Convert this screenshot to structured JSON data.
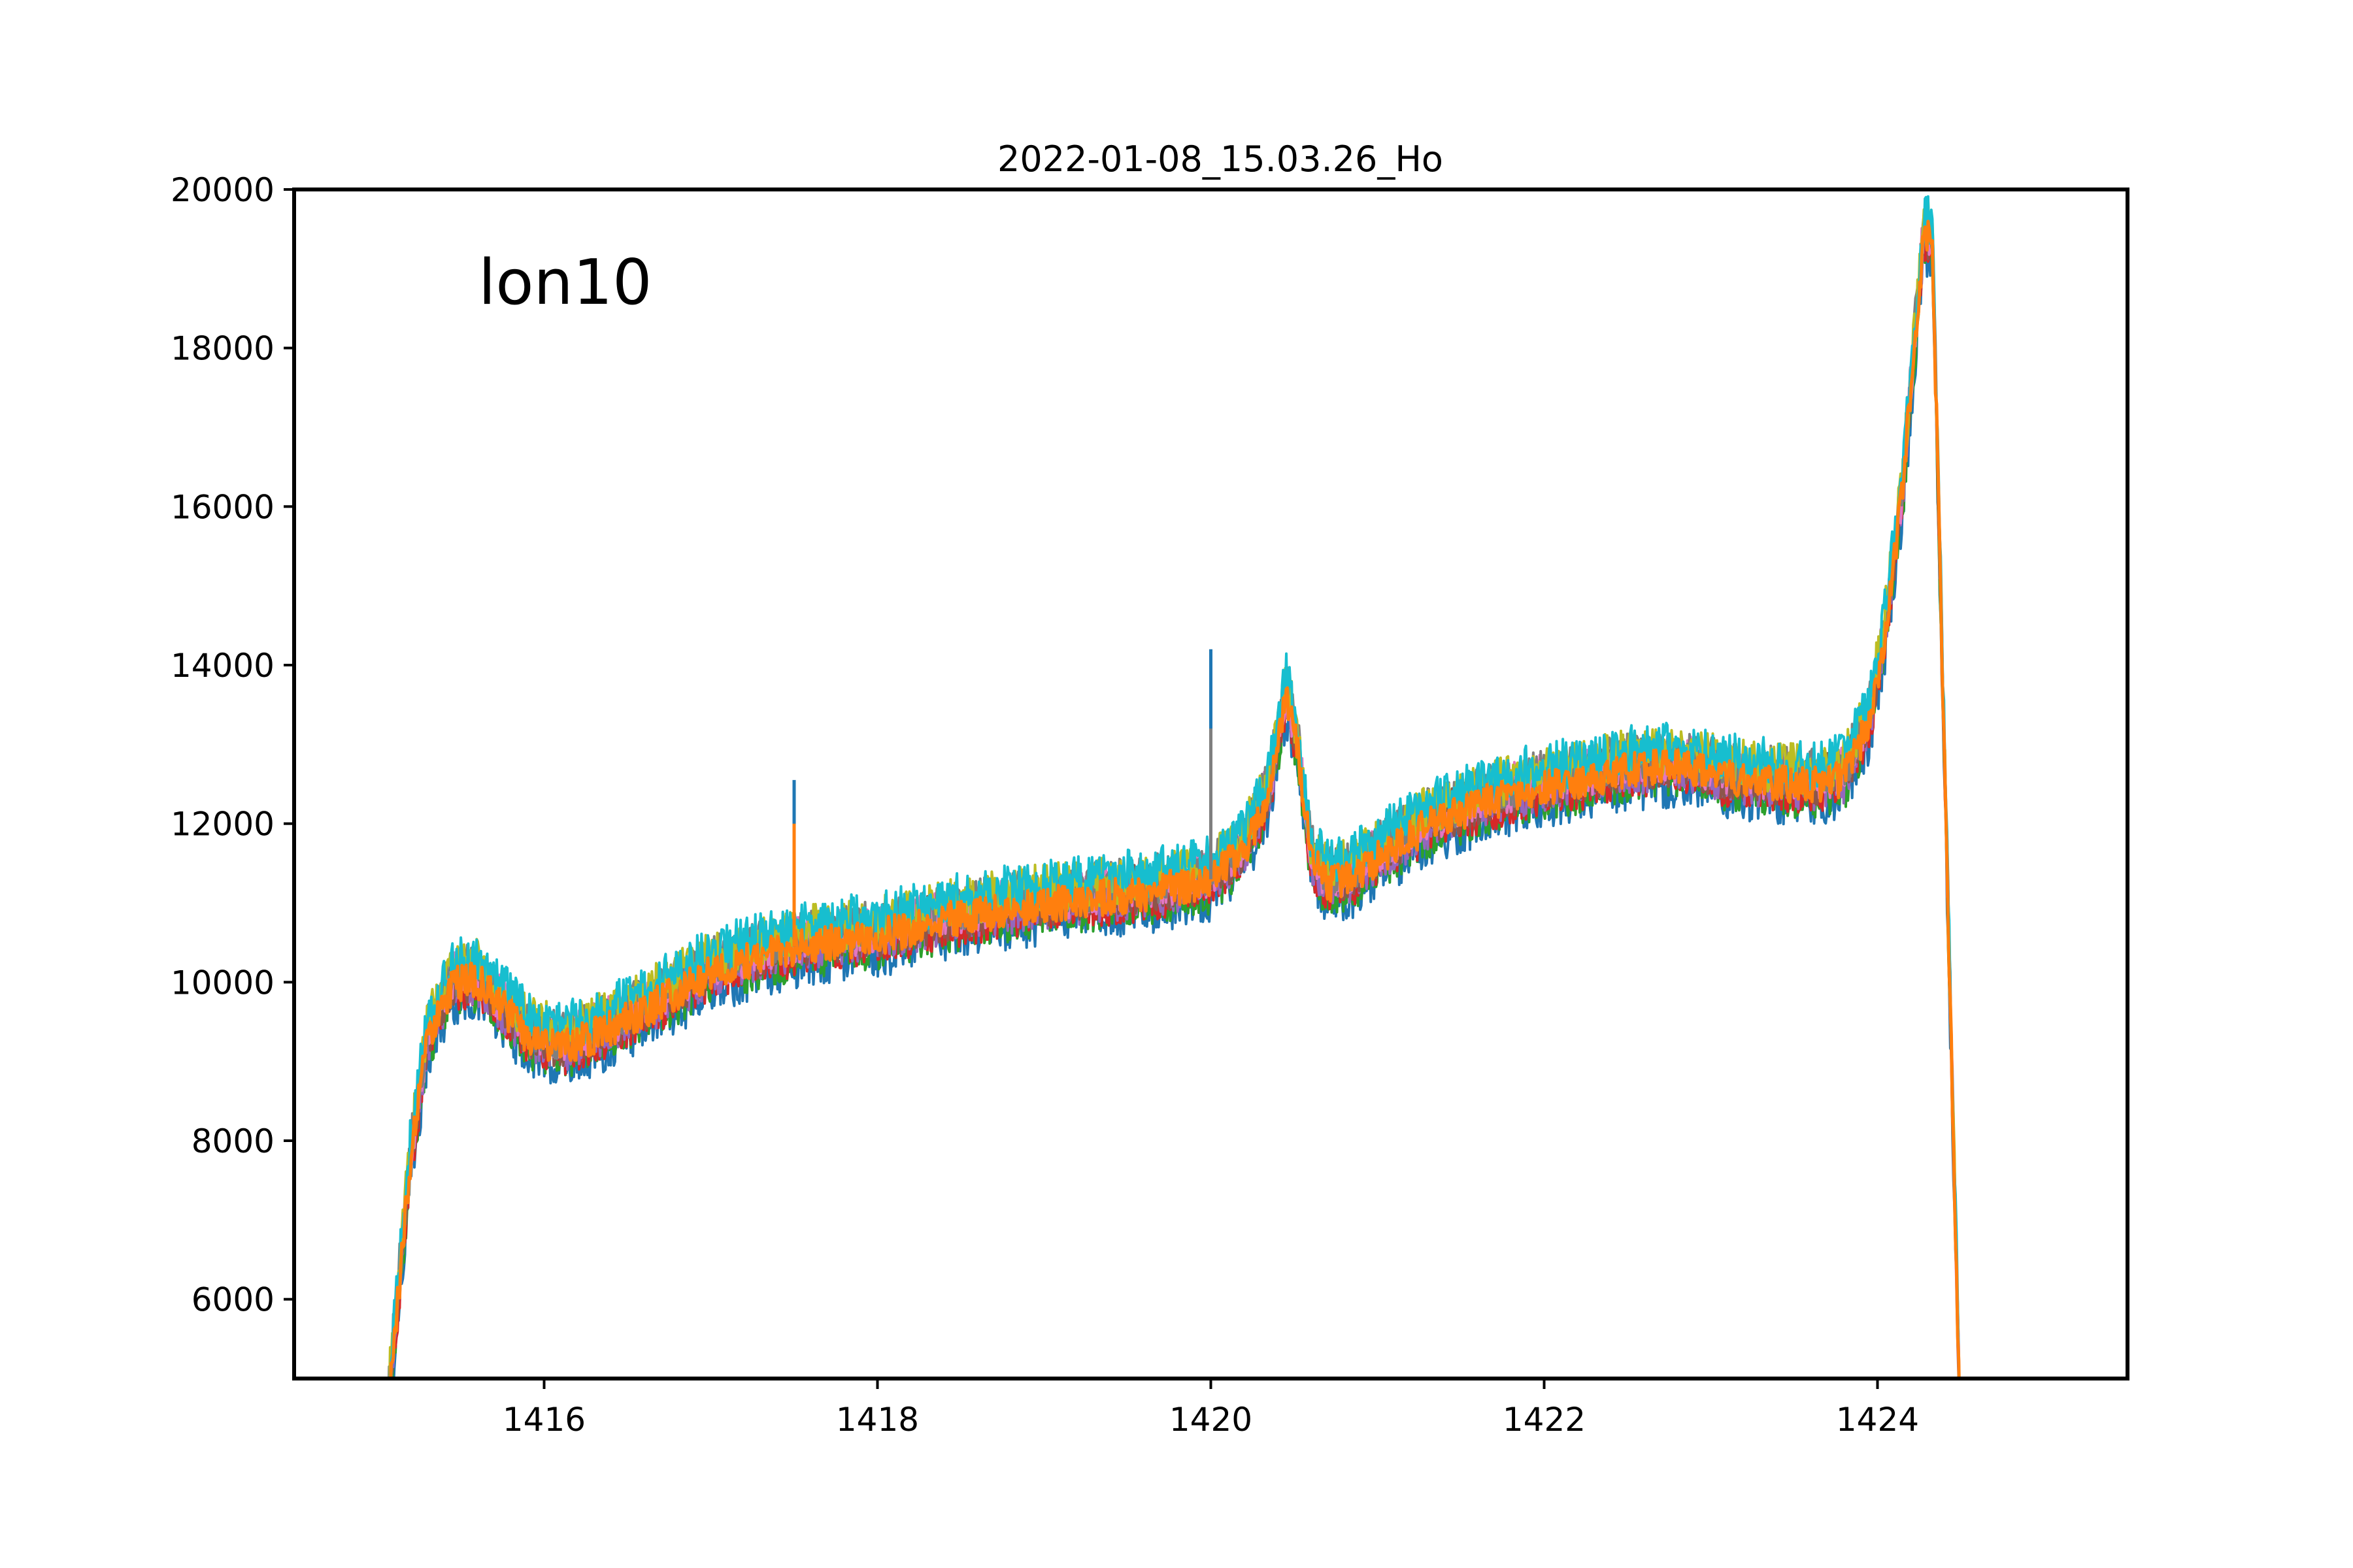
{
  "chart_data": {
    "type": "line",
    "title": "2022-01-08_15.03.26_Ho",
    "annotation": "lon10",
    "xlabel": "",
    "ylabel": "",
    "xlim": [
      1414.5,
      1425.5
    ],
    "ylim": [
      5000,
      20000
    ],
    "x_ticks": [
      "1416",
      "1418",
      "1420",
      "1422",
      "1424"
    ],
    "y_ticks": [
      "6000",
      "8000",
      "10000",
      "12000",
      "14000",
      "16000",
      "18000",
      "20000"
    ],
    "grid": false,
    "legend": false,
    "series_count": 10,
    "series_colors": [
      "#1f77b4",
      "#ff7f0e",
      "#2ca02c",
      "#d62728",
      "#9467bd",
      "#8c564b",
      "#e377c2",
      "#7f7f7f",
      "#bcbd22",
      "#17becf"
    ],
    "band_half_width": 420,
    "median_profile": {
      "x": [
        1415.0,
        1415.1,
        1415.2,
        1415.3,
        1415.45,
        1415.6,
        1415.75,
        1415.9,
        1416.1,
        1416.3,
        1416.5,
        1416.8,
        1417.0,
        1417.3,
        1417.6,
        1418.0,
        1418.4,
        1418.8,
        1419.2,
        1419.6,
        1420.0,
        1420.2,
        1420.35,
        1420.45,
        1420.52,
        1420.6,
        1420.7,
        1420.85,
        1421.0,
        1421.3,
        1421.6,
        1421.9,
        1422.2,
        1422.5,
        1422.8,
        1423.1,
        1423.3,
        1423.6,
        1423.8,
        1423.95,
        1424.05,
        1424.15,
        1424.22,
        1424.28,
        1424.33,
        1424.4,
        1424.5
      ],
      "y": [
        3000,
        5500,
        7800,
        9300,
        10000,
        10050,
        9700,
        9350,
        9200,
        9350,
        9550,
        9900,
        10150,
        10350,
        10500,
        10600,
        10800,
        10950,
        11050,
        11150,
        11300,
        11700,
        12400,
        13650,
        13000,
        11600,
        11250,
        11350,
        11600,
        12000,
        12250,
        12450,
        12550,
        12700,
        12750,
        12600,
        12550,
        12500,
        12600,
        13300,
        14500,
        16200,
        18000,
        19500,
        19300,
        13000,
        4000
      ]
    },
    "spikes": [
      {
        "x": 1417.5,
        "y_top": 12550,
        "color": "#1f77b4"
      },
      {
        "x": 1417.5,
        "y_top": 12000,
        "color": "#ff7f0e"
      },
      {
        "x": 1420.0,
        "y_top": 14200,
        "color": "#1f77b4"
      },
      {
        "x": 1420.0,
        "y_top": 13200,
        "color": "#7f7f7f"
      }
    ]
  }
}
